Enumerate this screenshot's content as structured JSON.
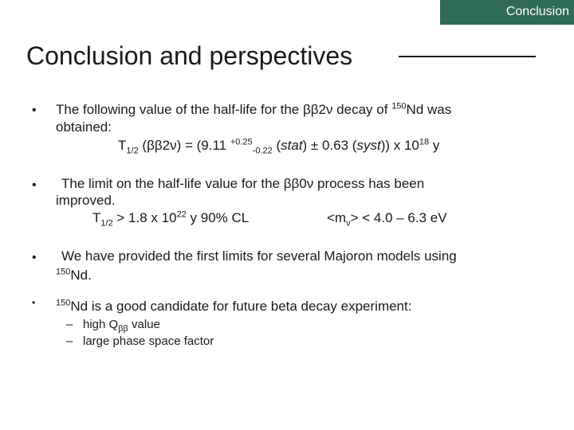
{
  "header": {
    "section_tab": "Conclusion"
  },
  "title": "Conclusion and perspectives",
  "bullet_char": "•",
  "dash_char": "–",
  "items": {
    "b1": {
      "l1a": "The following value of the half-life for the ββ2ν decay of ",
      "l1_sup": "150",
      "l1b": "Nd was",
      "l2": "obtained:",
      "f_a": "T",
      "f_sub1": "1/2",
      "f_b": " (ββ2ν) = (9.11 ",
      "f_sup1": "+0.25",
      "f_sub2": "-0.22",
      "f_c": " (",
      "f_stat": "stat",
      "f_d": ") ± 0.63 (",
      "f_syst": "syst",
      "f_e": ")) x 10",
      "f_sup2": "18",
      "f_f": " y"
    },
    "b2": {
      "l1": "The limit on the half-life value for the ββ0ν process has been",
      "l2": "improved.",
      "f_a": "T",
      "f_sub1": "1/2",
      "f_b": " > 1.8 x 10",
      "f_sup1": "22",
      "f_c": " y   90% CL",
      "m_a": "<m",
      "m_sub": "ν",
      "m_b": "> < 4.0 – 6.3 eV"
    },
    "b3": {
      "l1": "We have provided the first limits for several Majoron models using",
      "l2_sup": "150",
      "l2": "Nd."
    },
    "b4": {
      "l1_sup": "150",
      "l1": "Nd is a good candidate for future beta decay experiment:",
      "s1a": "high Q",
      "s1_sub": "ββ",
      "s1b": " value",
      "s2": "large phase space factor"
    }
  }
}
